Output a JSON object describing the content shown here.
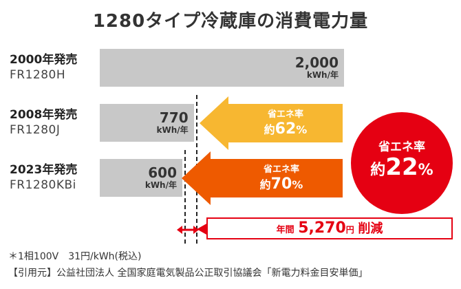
{
  "title": "1280タイプ冷蔵庫の消費電力量",
  "rows": [
    {
      "year": "2000年発売",
      "model": "FR1280H",
      "value": "2,000",
      "unit": "kWh/年"
    },
    {
      "year": "2008年発売",
      "model": "FR1280J",
      "value": "770",
      "unit": "kWh/年"
    },
    {
      "year": "2023年発売",
      "model": "FR1280KBi",
      "value": "600",
      "unit": "kWh/年"
    }
  ],
  "arrows": [
    {
      "label": "省エネ率",
      "prefix": "約",
      "number": "62",
      "suffix": "%",
      "color": "#f7b731"
    },
    {
      "label": "省エネ率",
      "prefix": "約",
      "number": "70",
      "suffix": "%",
      "color": "#ee5a00"
    }
  ],
  "circle": {
    "label": "省エネ率",
    "prefix": "約",
    "number": "22",
    "suffix": "%",
    "color": "#e50012"
  },
  "savings": {
    "prefix": "年間",
    "amount": "5,270",
    "unit": "円",
    "suffix": "削減"
  },
  "notes": {
    "line1": "＊1相100V　31円/kWh(税込)",
    "line2": "【引用元】公益社団法人 全国家庭電気製品公正取引協議会「新電力料金目安単価」"
  },
  "chart_data": {
    "type": "bar",
    "orientation": "horizontal",
    "title": "1280タイプ冷蔵庫の消費電力量",
    "categories": [
      "2000年発売 FR1280H",
      "2008年発売 FR1280J",
      "2023年発売 FR1280KBi"
    ],
    "values": [
      2000,
      770,
      600
    ],
    "unit": "kWh/年",
    "annotations": [
      "省エネ率 約62%",
      "省エネ率 約70%",
      "省エネ率 約22%",
      "年間 5,270円 削減"
    ]
  }
}
